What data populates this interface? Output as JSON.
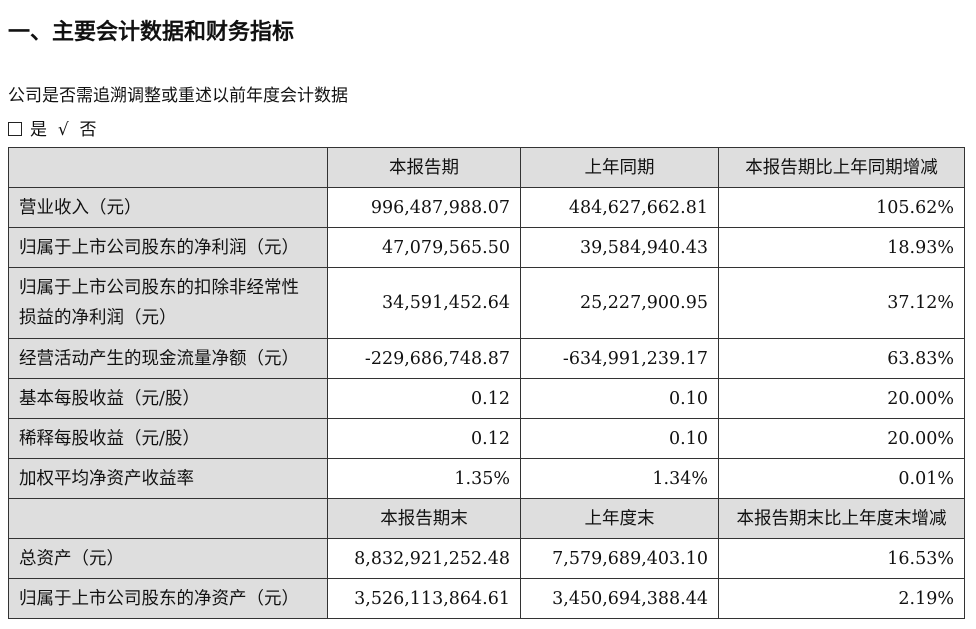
{
  "title": "一、主要会计数据和财务指标",
  "note": "公司是否需追溯调整或重述以前年度会计数据",
  "choice": {
    "yes": "是",
    "check": "√",
    "no": "否"
  },
  "table": {
    "header1": [
      "本报告期",
      "上年同期",
      "本报告期比上年同期增减"
    ],
    "rows1": [
      [
        "营业收入（元）",
        "996,487,988.07",
        "484,627,662.81",
        "105.62%"
      ],
      [
        "归属于上市公司股东的净利润（元）",
        "47,079,565.50",
        "39,584,940.43",
        "18.93%"
      ],
      [
        "归属于上市公司股东的扣除非经常性损益的净利润（元）",
        "34,591,452.64",
        "25,227,900.95",
        "37.12%"
      ],
      [
        "经营活动产生的现金流量净额（元）",
        "-229,686,748.87",
        "-634,991,239.17",
        "63.83%"
      ],
      [
        "基本每股收益（元/股）",
        "0.12",
        "0.10",
        "20.00%"
      ],
      [
        "稀释每股收益（元/股）",
        "0.12",
        "0.10",
        "20.00%"
      ],
      [
        "加权平均净资产收益率",
        "1.35%",
        "1.34%",
        "0.01%"
      ]
    ],
    "header2": [
      "本报告期末",
      "上年度末",
      "本报告期末比上年度末增减"
    ],
    "rows2": [
      [
        "总资产（元）",
        "8,832,921,252.48",
        "7,579,689,403.10",
        "16.53%"
      ],
      [
        "归属于上市公司股东的净资产（元）",
        "3,526,113,864.61",
        "3,450,694,388.44",
        "2.19%"
      ]
    ]
  }
}
